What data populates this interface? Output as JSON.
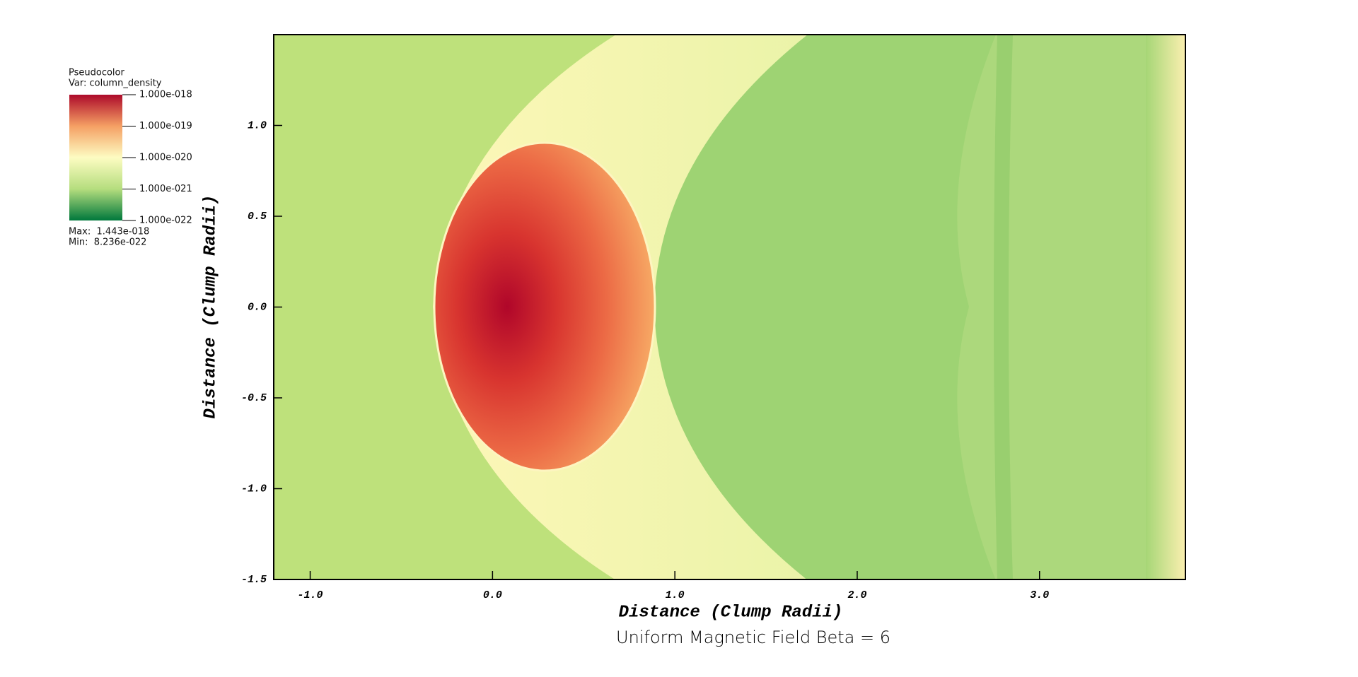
{
  "chart_data": {
    "type": "pseudocolor",
    "title": "Uniform Magnetic Field Beta = 6",
    "x_label": "Distance (Clump Radii)",
    "y_label": "Distance (Clump Radii)",
    "xlim": [
      -1.2,
      3.8
    ],
    "ylim": [
      -1.5,
      1.5
    ],
    "xticks": [
      {
        "value": -1,
        "label": "-1.0"
      },
      {
        "value": 0,
        "label": "0.0"
      },
      {
        "value": 1,
        "label": "1.0"
      },
      {
        "value": 2,
        "label": "2.0"
      },
      {
        "value": 3,
        "label": "3.0"
      }
    ],
    "yticks": [
      {
        "value": -1.5,
        "label": "-1.5"
      },
      {
        "value": -1,
        "label": "-1.0"
      },
      -0.5,
      {
        "value": 0,
        "label": "0.0"
      },
      0.5,
      {
        "value": 1,
        "label": "1.0"
      }
    ],
    "legend": {
      "title": "Pseudocolor",
      "variable": "Var: column_density",
      "log_scale": true,
      "range": [
        1e-22,
        1e-18
      ],
      "ticks": [
        {
          "value": 1e-18,
          "label": "1.000e-018"
        },
        {
          "value": 1e-19,
          "label": "1.000e-019"
        },
        {
          "value": 1e-20,
          "label": "1.000e-020"
        },
        {
          "value": 1e-21,
          "label": "1.000e-021"
        },
        {
          "value": 1e-22,
          "label": "1.000e-022"
        }
      ],
      "max": "Max:  1.443e-018",
      "min": "Min:  8.236e-022"
    }
  }
}
